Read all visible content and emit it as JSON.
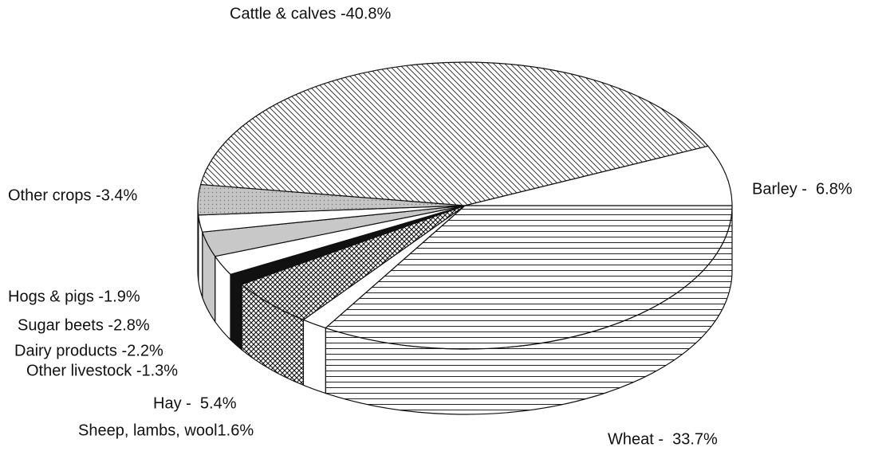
{
  "chart_data": {
    "type": "pie3d",
    "value_labels": [
      "Wheat -  33.7%",
      "Sheep, lambs, wool1.6%",
      "Hay -  5.4%",
      "Other livestock -1.3%",
      "Dairy products -2.2%",
      "Sugar beets -2.8%",
      "Hogs & pigs -1.9%",
      "Other crops -3.4%",
      "Cattle & calves -40.8%",
      "Barley -  6.8%"
    ],
    "values": [
      33.7,
      1.6,
      5.4,
      1.3,
      2.2,
      2.8,
      1.9,
      3.4,
      40.8,
      6.8
    ],
    "colors": [
      "#ffffff",
      "#ffffff",
      "#ffffff",
      "#111111",
      "#ffffff",
      "#c8c8c8",
      "#ffffff",
      "#c8c8c8",
      "#ffffff",
      "#ffffff"
    ],
    "patterns": [
      "horizontal",
      "none",
      "crosshatch",
      "none",
      "none",
      "none",
      "none",
      "dots",
      "diagonal",
      "none"
    ]
  }
}
